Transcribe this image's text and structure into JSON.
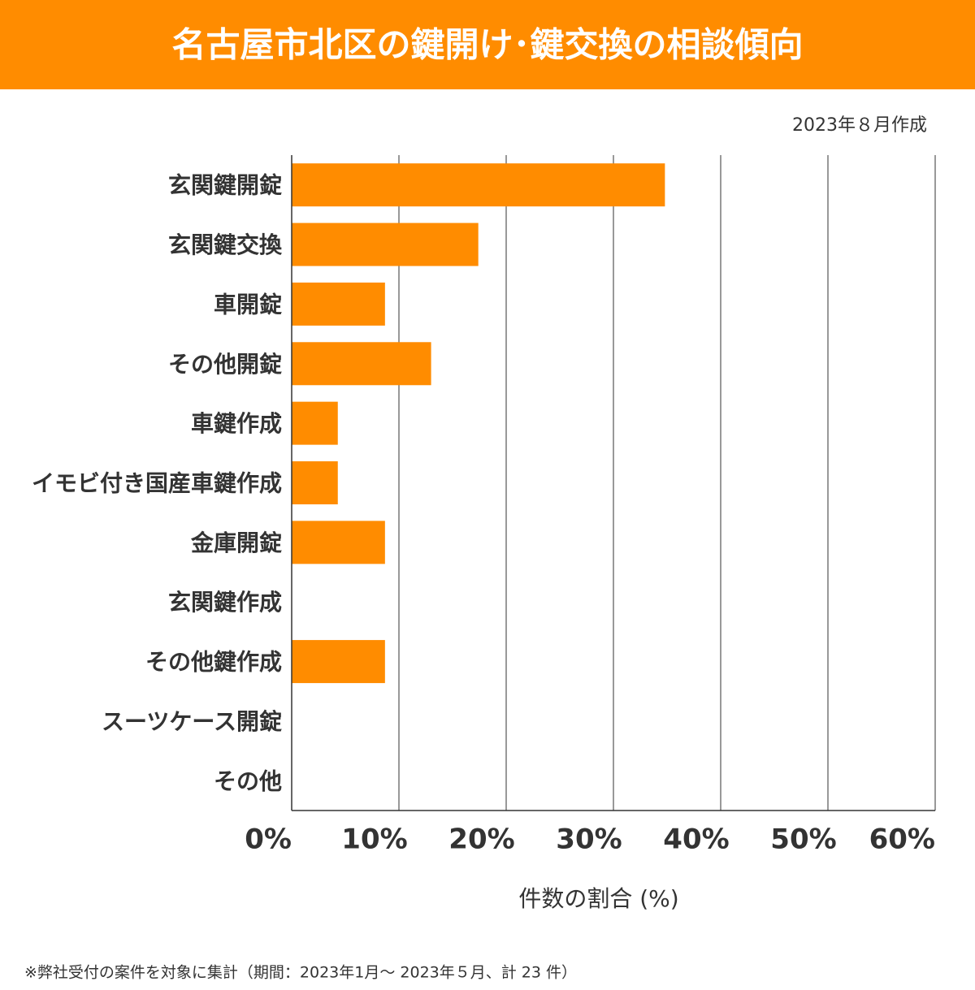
{
  "chart_data": {
    "type": "bar",
    "orientation": "horizontal",
    "title": "名古屋市北区の鍵開け･鍵交換の相談傾向",
    "subtitle": "2023年８月作成",
    "x_label": "件数の割合 (%)",
    "footnote": "※弊社受付の案件を対象に集計（期間：2023年1月～ 2023年５月、計 23 件）",
    "categories": [
      "玄関鍵開錠",
      "玄関鍵交換",
      "車開錠",
      "その他開錠",
      "車鍵作成",
      "イモビ付き国産車鍵作成",
      "金庫開錠",
      "玄関鍵作成",
      "その他鍵作成",
      "スーツケース開錠",
      "その他"
    ],
    "values": [
      34.8,
      17.4,
      8.7,
      13,
      4.3,
      4.3,
      8.7,
      0,
      8.7,
      0,
      0
    ],
    "color": "#ff8c00",
    "xlim": [
      0,
      60
    ],
    "xticks": [
      {
        "value": 0,
        "label": "0%"
      },
      {
        "value": 10,
        "label": "10%"
      },
      {
        "value": 20,
        "label": "20%"
      },
      {
        "value": 30,
        "label": "30%"
      },
      {
        "value": 40,
        "label": "40%"
      },
      {
        "value": 50,
        "label": "50%"
      },
      {
        "value": 60,
        "label": "60%"
      }
    ],
    "grid": true
  }
}
